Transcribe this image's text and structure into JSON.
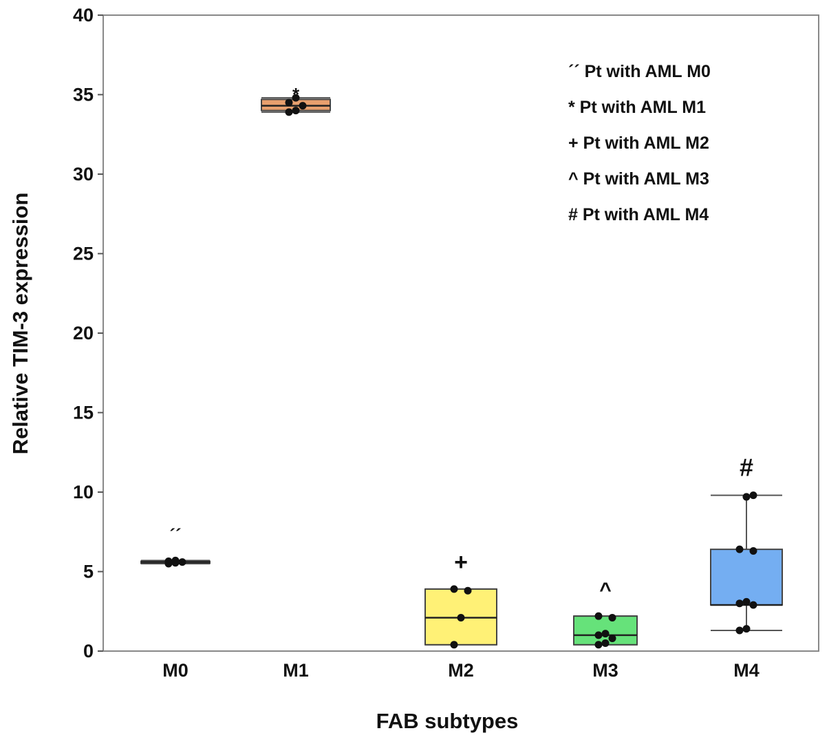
{
  "chart_data": {
    "type": "box",
    "xlabel": "FAB subtypes",
    "ylabel": "Relative TIM-3 expression",
    "ylim": [
      0,
      40
    ],
    "yticks": [
      0,
      5,
      10,
      15,
      20,
      25,
      30,
      35,
      40
    ],
    "categories": [
      "M0",
      "M1",
      "M2",
      "M3",
      "M4"
    ],
    "grid": false,
    "legend_position": "top-right",
    "legend": [
      "´´ Pt with AML M0",
      "* Pt with AML M1",
      "+ Pt with AML M2",
      "^ Pt with AML M3",
      "# Pt with AML M4"
    ],
    "series": [
      {
        "category": "M0",
        "marker": "´´",
        "color": "#000000",
        "min": 5.5,
        "q1": 5.55,
        "median": 5.6,
        "q3": 5.65,
        "max": 5.7,
        "points": [
          5.5,
          5.55,
          5.6,
          5.65,
          5.7
        ]
      },
      {
        "category": "M1",
        "marker": "*",
        "color": "#e8a06e",
        "min": 33.9,
        "q1": 34.0,
        "median": 34.3,
        "q3": 34.7,
        "max": 34.8,
        "points": [
          33.9,
          34.0,
          34.3,
          34.5,
          34.8
        ]
      },
      {
        "category": "M2",
        "marker": "+",
        "color": "#fff176",
        "min": 0.4,
        "q1": 0.4,
        "median": 2.1,
        "q3": 3.9,
        "max": 3.9,
        "points": [
          0.4,
          2.1,
          3.8,
          3.9
        ]
      },
      {
        "category": "M3",
        "marker": "^",
        "color": "#66e27a",
        "min": 0.4,
        "q1": 0.4,
        "median": 1.0,
        "q3": 2.2,
        "max": 2.2,
        "points": [
          0.4,
          0.5,
          0.8,
          1.0,
          1.1,
          2.1,
          2.2
        ]
      },
      {
        "category": "M4",
        "marker": "#",
        "color": "#74aef2",
        "min": 1.3,
        "q1": 2.9,
        "median": 2.9,
        "q3": 6.4,
        "max": 9.8,
        "points": [
          1.3,
          1.4,
          2.9,
          3.0,
          3.1,
          6.3,
          6.4,
          9.7,
          9.8
        ]
      }
    ]
  }
}
